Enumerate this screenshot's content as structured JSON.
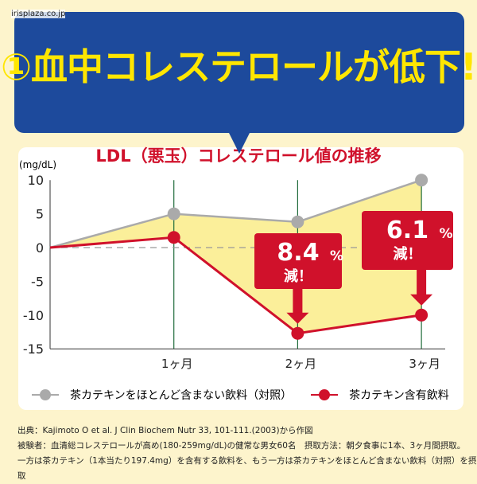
{
  "watermark": "irisplaza.co.jp",
  "headline": "①血中コレステロールが低下!",
  "chart_data": {
    "type": "line",
    "title": "LDL（悪玉）コレステロール値の推移",
    "ylabel": "(mg/dL)",
    "ylim": [
      -15,
      10
    ],
    "yticks": [
      "10",
      "5",
      "0",
      "-5",
      "-10",
      "-15"
    ],
    "categories": [
      "",
      "1ヶ月",
      "2ヶ月",
      "3ヶ月"
    ],
    "grid": "vertical at months",
    "series": [
      {
        "name": "茶カテキンをほとんど含まない飲料（対照）",
        "color": "#aaaaaa",
        "values": [
          0,
          5,
          3.8,
          10
        ]
      },
      {
        "name": "茶カテキン含有飲料",
        "color": "#d0112b",
        "values": [
          0,
          1.5,
          -12.7,
          -10
        ]
      }
    ],
    "fill_between": "#fbef9a",
    "annotations": [
      {
        "value": "8.4",
        "unit": "%",
        "text": "減！"
      },
      {
        "value": "6.1",
        "unit": "%",
        "text": "減！"
      }
    ]
  },
  "source": [
    "出典：Kajimoto O et al. J Clin Biochem Nutr 33, 101-111.(2003)から作図",
    "被験者：血清総コレステロールが高め(180-259mg/dL)の健常な男女60名　摂取方法：朝夕食事に1本、3ヶ月間摂取。",
    "一方は茶カテキン（1本当たり197.4mg）を含有する飲料を、もう一方は茶カテキンをほとんど含まない飲料（対照）を摂取"
  ]
}
